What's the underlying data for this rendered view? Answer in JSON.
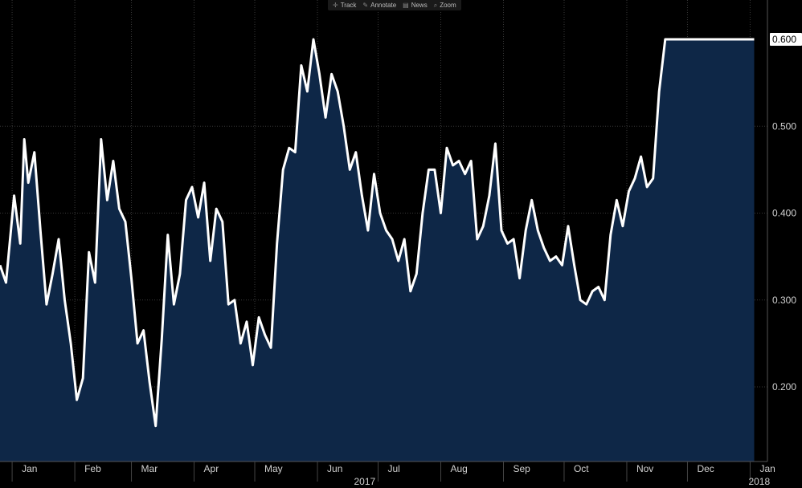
{
  "toolbar": {
    "items": [
      {
        "label": "Track",
        "icon": "crosshair-icon"
      },
      {
        "label": "Annotate",
        "icon": "pencil-icon"
      },
      {
        "label": "News",
        "icon": "news-icon"
      },
      {
        "label": "Zoom",
        "icon": "magnifier-icon"
      }
    ]
  },
  "chart_data": {
    "type": "area",
    "title": "",
    "xlabel": "",
    "ylabel": "",
    "y_ticks": [
      "0.200",
      "0.300",
      "0.400",
      "0.500"
    ],
    "ylim": [
      0.13,
      0.65
    ],
    "x_months": [
      {
        "label": "Jan",
        "date": "2017-01-01"
      },
      {
        "label": "Feb",
        "date": "2017-02-01"
      },
      {
        "label": "Mar",
        "date": "2017-03-01"
      },
      {
        "label": "Apr",
        "date": "2017-04-01"
      },
      {
        "label": "May",
        "date": "2017-05-01"
      },
      {
        "label": "Jun",
        "date": "2017-06-01"
      },
      {
        "label": "Jul",
        "date": "2017-07-01"
      },
      {
        "label": "Aug",
        "date": "2017-08-01"
      },
      {
        "label": "Sep",
        "date": "2017-09-01"
      },
      {
        "label": "Oct",
        "date": "2017-10-01"
      },
      {
        "label": "Nov",
        "date": "2017-11-01"
      },
      {
        "label": "Dec",
        "date": "2017-12-01"
      },
      {
        "label": "Jan",
        "date": "2018-01-01"
      }
    ],
    "years": [
      {
        "label": "2017",
        "date": "2017-07-01"
      },
      {
        "label": "2018",
        "date": "2018-01-01"
      }
    ],
    "last_value_label": "0.600",
    "colors": {
      "background": "#000000",
      "fill": "#0e2747",
      "line": "#ffffff",
      "grid": "#3a3a3a",
      "label_box": "#ffffff"
    },
    "grid": true,
    "series": [
      {
        "x": [
          "2016-12-26",
          "2016-12-29",
          "2017-01-02",
          "2017-01-05",
          "2017-01-07",
          "2017-01-09",
          "2017-01-12",
          "2017-01-15",
          "2017-01-18",
          "2017-01-21",
          "2017-01-24",
          "2017-01-27",
          "2017-01-30",
          "2017-02-02",
          "2017-02-05",
          "2017-02-08",
          "2017-02-11",
          "2017-02-14",
          "2017-02-17",
          "2017-02-20",
          "2017-02-23",
          "2017-02-26",
          "2017-03-01",
          "2017-03-04",
          "2017-03-07",
          "2017-03-10",
          "2017-03-13",
          "2017-03-16",
          "2017-03-19",
          "2017-03-22",
          "2017-03-25",
          "2017-03-28",
          "2017-03-31",
          "2017-04-03",
          "2017-04-06",
          "2017-04-09",
          "2017-04-12",
          "2017-04-15",
          "2017-04-18",
          "2017-04-21",
          "2017-04-24",
          "2017-04-27",
          "2017-04-30",
          "2017-05-03",
          "2017-05-06",
          "2017-05-09",
          "2017-05-12",
          "2017-05-15",
          "2017-05-18",
          "2017-05-21",
          "2017-05-24",
          "2017-05-27",
          "2017-05-30",
          "2017-06-02",
          "2017-06-05",
          "2017-06-08",
          "2017-06-11",
          "2017-06-14",
          "2017-06-17",
          "2017-06-20",
          "2017-06-23",
          "2017-06-26",
          "2017-06-29",
          "2017-07-02",
          "2017-07-05",
          "2017-07-08",
          "2017-07-11",
          "2017-07-14",
          "2017-07-17",
          "2017-07-20",
          "2017-07-23",
          "2017-07-26",
          "2017-07-29",
          "2017-08-01",
          "2017-08-04",
          "2017-08-07",
          "2017-08-10",
          "2017-08-13",
          "2017-08-16",
          "2017-08-19",
          "2017-08-22",
          "2017-08-25",
          "2017-08-28",
          "2017-08-31",
          "2017-09-03",
          "2017-09-06",
          "2017-09-09",
          "2017-09-12",
          "2017-09-15",
          "2017-09-18",
          "2017-09-21",
          "2017-09-24",
          "2017-09-27",
          "2017-09-30",
          "2017-10-03",
          "2017-10-06",
          "2017-10-09",
          "2017-10-12",
          "2017-10-15",
          "2017-10-18",
          "2017-10-21",
          "2017-10-24",
          "2017-10-27",
          "2017-10-30",
          "2017-11-02",
          "2017-11-05",
          "2017-11-08",
          "2017-11-11",
          "2017-11-14",
          "2017-11-17",
          "2017-11-20",
          "2017-11-23",
          "2017-11-26",
          "2017-11-29",
          "2017-12-02",
          "2017-12-05",
          "2017-12-08",
          "2017-12-11",
          "2017-12-14",
          "2017-12-17",
          "2017-12-20",
          "2017-12-23",
          "2017-12-26",
          "2017-12-29",
          "2018-01-01",
          "2018-01-03"
        ],
        "values": [
          0.34,
          0.32,
          0.42,
          0.365,
          0.485,
          0.435,
          0.47,
          0.38,
          0.295,
          0.33,
          0.37,
          0.3,
          0.25,
          0.185,
          0.21,
          0.355,
          0.32,
          0.485,
          0.415,
          0.46,
          0.405,
          0.39,
          0.325,
          0.25,
          0.265,
          0.205,
          0.155,
          0.255,
          0.375,
          0.295,
          0.33,
          0.415,
          0.43,
          0.395,
          0.435,
          0.345,
          0.405,
          0.39,
          0.295,
          0.3,
          0.25,
          0.275,
          0.225,
          0.28,
          0.26,
          0.245,
          0.365,
          0.45,
          0.475,
          0.47,
          0.57,
          0.54,
          0.6,
          0.56,
          0.51,
          0.56,
          0.54,
          0.5,
          0.45,
          0.47,
          0.42,
          0.38,
          0.445,
          0.4,
          0.38,
          0.37,
          0.345,
          0.37,
          0.31,
          0.33,
          0.4,
          0.45,
          0.45,
          0.4,
          0.475,
          0.455,
          0.46,
          0.445,
          0.46,
          0.37,
          0.385,
          0.42,
          0.48,
          0.38,
          0.365,
          0.37,
          0.325,
          0.38,
          0.415,
          0.38,
          0.36,
          0.345,
          0.35,
          0.34,
          0.385,
          0.34,
          0.3,
          0.295,
          0.31,
          0.315,
          0.3,
          0.375,
          0.415,
          0.385,
          0.425,
          0.44,
          0.465,
          0.43,
          0.44,
          0.54,
          0.6,
          0.6,
          0.6,
          0.6,
          0.6,
          0.6,
          0.6,
          0.6,
          0.6,
          0.6,
          0.6,
          0.6,
          0.6,
          0.6,
          0.6,
          0.6
        ]
      }
    ]
  }
}
